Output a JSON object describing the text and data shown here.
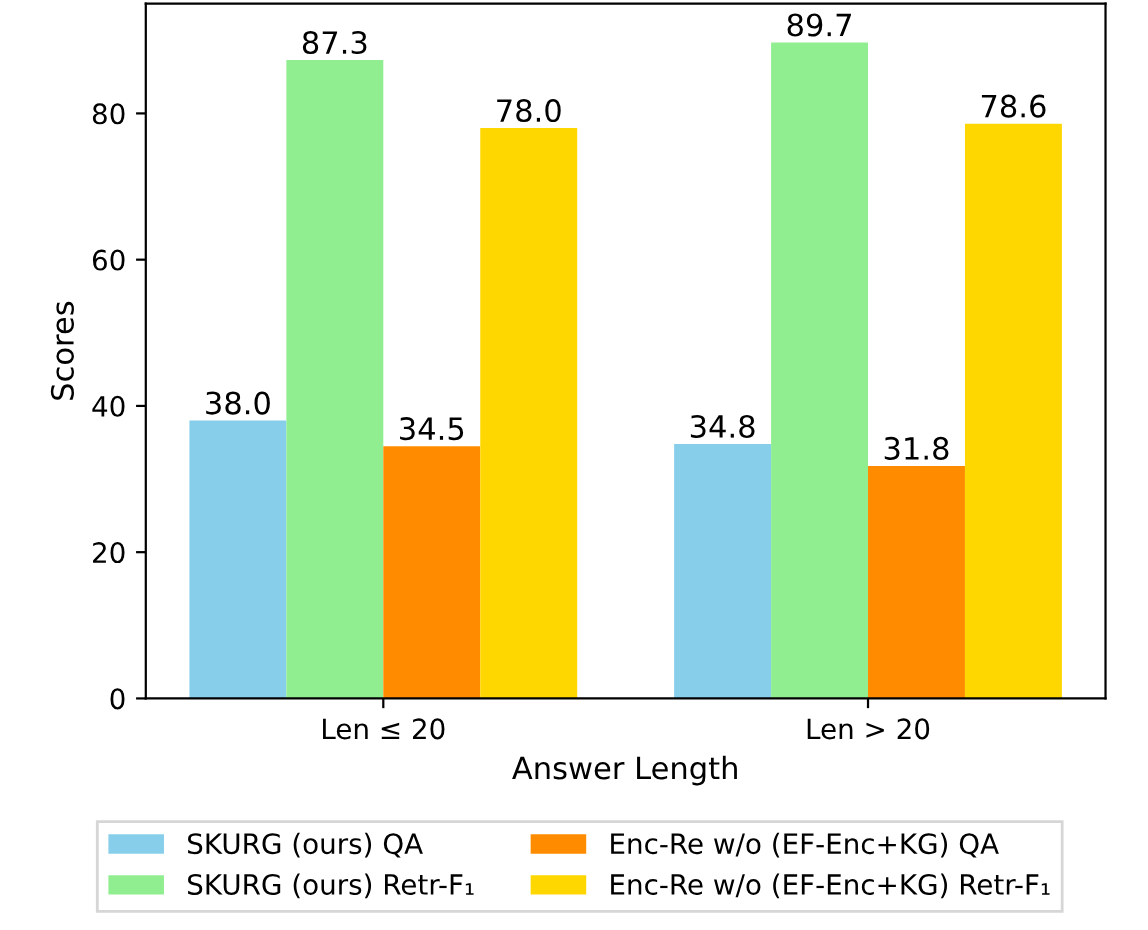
{
  "chart_data": {
    "type": "bar",
    "xlabel": "Answer Length",
    "ylabel": "Scores",
    "categories": [
      "Len ≤ 20",
      "Len > 20"
    ],
    "series": [
      {
        "name": "SKURG (ours) QA",
        "color": "#87ceeb",
        "values": [
          38.0,
          34.8
        ],
        "value_labels": [
          "38.0",
          "34.8"
        ]
      },
      {
        "name": "SKURG (ours) Retr-F₁",
        "color": "#90ee90",
        "values": [
          87.3,
          89.7
        ],
        "value_labels": [
          "87.3",
          "89.7"
        ]
      },
      {
        "name": "Enc-Re w/o (EF-Enc+KG) QA",
        "color": "#ff8c00",
        "values": [
          34.5,
          31.8
        ],
        "value_labels": [
          "34.5",
          "31.8"
        ]
      },
      {
        "name": "Enc-Re w/o (EF-Enc+KG) Retr-F₁",
        "color": "#ffd700",
        "values": [
          78.0,
          78.6
        ],
        "value_labels": [
          "78.0",
          "78.6"
        ]
      }
    ],
    "ylim": [
      0,
      95
    ],
    "yticks": [
      0,
      20,
      40,
      60,
      80
    ],
    "legend": "bottom",
    "grid": false
  }
}
